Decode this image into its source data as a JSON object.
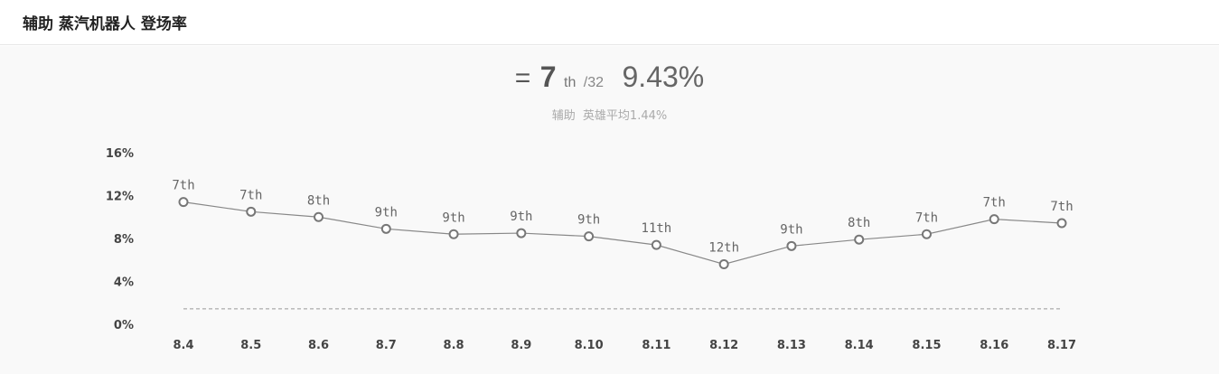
{
  "header": {
    "title": "辅助 蒸汽机器人 登场率"
  },
  "summary": {
    "eq_symbol": "=",
    "rank": "7",
    "rank_suffix": "th",
    "rank_total": "/32",
    "rate": "9.43%",
    "role": "辅助",
    "avg_label": "英雄平均1.44%"
  },
  "colors": {
    "line": "#888888",
    "marker_stroke": "#777777",
    "marker_fill": "#ffffff",
    "average_line": "#999999",
    "background": "#f9f9f9"
  },
  "chart_data": {
    "type": "line",
    "x": [
      "8.4",
      "8.5",
      "8.6",
      "8.7",
      "8.8",
      "8.9",
      "8.10",
      "8.11",
      "8.12",
      "8.13",
      "8.14",
      "8.15",
      "8.16",
      "8.17"
    ],
    "series": [
      {
        "values": [
          11.4,
          10.5,
          10.0,
          8.9,
          8.4,
          8.5,
          8.2,
          7.4,
          5.6,
          7.3,
          7.9,
          8.4,
          9.8,
          9.43
        ],
        "labels": [
          "7th",
          "7th",
          "8th",
          "9th",
          "9th",
          "9th",
          "9th",
          "11th",
          "12th",
          "9th",
          "8th",
          "7th",
          "7th",
          "7th"
        ]
      }
    ],
    "average": 1.44,
    "yticks": [
      "0%",
      "4%",
      "8%",
      "12%",
      "16%"
    ],
    "ytick_values": [
      0,
      4,
      8,
      12,
      16
    ],
    "ylim": [
      0,
      16
    ],
    "grid": false
  }
}
